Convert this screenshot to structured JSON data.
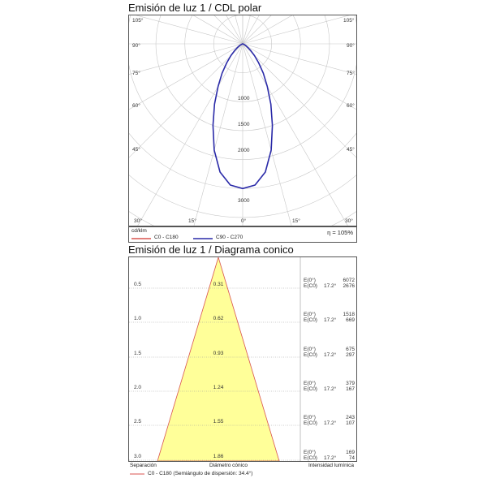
{
  "polar": {
    "title": "Emisión de luz 1 / CDL polar",
    "unit_label": "cd/klm",
    "efficiency_label": "η = 105%",
    "angle_labels_left": [
      "105°",
      "90°",
      "75°",
      "60°",
      "45°",
      "30°"
    ],
    "angle_labels_right": [
      "105°",
      "90°",
      "75°",
      "60°",
      "45°",
      "30°"
    ],
    "angle_labels_bottom": [
      "15°",
      "0°",
      "15°"
    ],
    "radial_labels": [
      "1000",
      "1500",
      "2000",
      "3000"
    ],
    "legend": [
      {
        "name": "C0 - C180",
        "color": "#d9534f"
      },
      {
        "name": "C90 - C270",
        "color": "#2a2aa8"
      }
    ]
  },
  "cone": {
    "title": "Emisión de luz 1 / Diagrama conico",
    "rows": [
      {
        "separation": "0.5",
        "diameter": "0.31",
        "e0_label": "E(0°)",
        "ec0_label": "E(C0)",
        "angle": "17.2°",
        "e0": "6072",
        "ec0": "2676"
      },
      {
        "separation": "1.0",
        "diameter": "0.62",
        "e0_label": "E(0°)",
        "ec0_label": "E(C0)",
        "angle": "17.2°",
        "e0": "1518",
        "ec0": "669"
      },
      {
        "separation": "1.5",
        "diameter": "0.93",
        "e0_label": "E(0°)",
        "ec0_label": "E(C0)",
        "angle": "17.2°",
        "e0": "675",
        "ec0": "297"
      },
      {
        "separation": "2.0",
        "diameter": "1.24",
        "e0_label": "E(0°)",
        "ec0_label": "E(C0)",
        "angle": "17.2°",
        "e0": "379",
        "ec0": "167"
      },
      {
        "separation": "2.5",
        "diameter": "1.55",
        "e0_label": "E(0°)",
        "ec0_label": "E(C0)",
        "angle": "17.2°",
        "e0": "243",
        "ec0": "107"
      },
      {
        "separation": "3.0",
        "diameter": "1.86",
        "e0_label": "E(0°)",
        "ec0_label": "E(C0)",
        "angle": "17.2°",
        "e0": "169",
        "ec0": "74"
      }
    ],
    "footer": {
      "separation_label": "Separación",
      "diameter_label": "Diámetro cónico",
      "intensity_label": "Intensidad lumínica",
      "legend_text": "C0 - C180 (Semiángulo de dispersión: 34.4°)",
      "legend_color": "#d9534f"
    },
    "fill_color": "#ffff99",
    "stroke_color": "#d9534f"
  },
  "chart_data": [
    {
      "type": "polar",
      "title": "Emisión de luz 1 / CDL polar",
      "unit": "cd/klm",
      "radial_ticks": [
        1000,
        1500,
        2000,
        3000
      ],
      "angle_ticks_deg": [
        0,
        15,
        30,
        45,
        60,
        75,
        90,
        105
      ],
      "series": [
        {
          "name": "C90 - C270",
          "color": "#2a2aa8",
          "angles_deg": [
            0,
            5,
            10,
            15,
            20,
            25,
            30,
            35,
            40,
            45,
            50,
            55,
            60,
            65,
            70,
            80,
            90
          ],
          "values": [
            2500,
            2450,
            2250,
            1900,
            1500,
            1150,
            850,
            620,
            430,
            290,
            180,
            110,
            60,
            30,
            12,
            3,
            0
          ]
        }
      ]
    },
    {
      "type": "table",
      "title": "Emisión de luz 1 / Diagrama conico",
      "half_angle_deg": 17.2,
      "columns": [
        "Separación",
        "Diámetro cónico",
        "E(0°)",
        "E(C0)"
      ],
      "rows": [
        [
          0.5,
          0.31,
          6072,
          2676
        ],
        [
          1.0,
          0.62,
          1518,
          669
        ],
        [
          1.5,
          0.93,
          675,
          297
        ],
        [
          2.0,
          1.24,
          379,
          167
        ],
        [
          2.5,
          1.55,
          243,
          107
        ],
        [
          3.0,
          1.86,
          169,
          74
        ]
      ]
    }
  ]
}
